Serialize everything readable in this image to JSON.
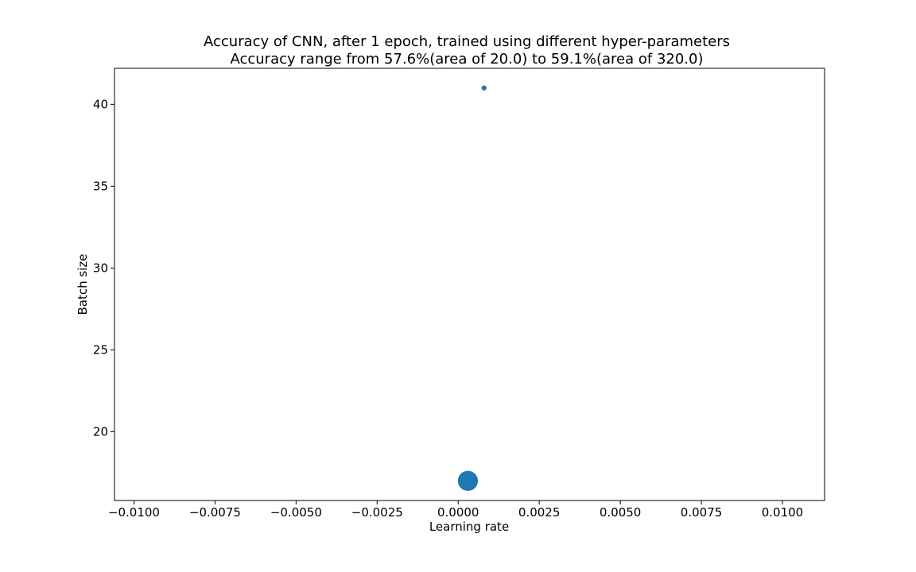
{
  "chart_data": {
    "type": "scatter",
    "title": "Accuracy of CNN, after 1 epoch, trained using different hyper-parameters",
    "subtitle": "Accuracy range from 57.6%(area of 20.0) to 59.1%(area of 320.0)",
    "xlabel": "Learning rate",
    "ylabel": "Batch size",
    "xlim": [
      -0.0106,
      0.0113
    ],
    "ylim": [
      15.8,
      42.2
    ],
    "xticks": [
      -0.01,
      -0.0075,
      -0.005,
      -0.0025,
      0.0,
      0.0025,
      0.005,
      0.0075,
      0.01
    ],
    "xtick_labels": [
      "−0.0100",
      "−0.0075",
      "−0.0050",
      "−0.0025",
      "0.0000",
      "0.0025",
      "0.0050",
      "0.0075",
      "0.0100"
    ],
    "yticks": [
      20,
      25,
      30,
      35,
      40
    ],
    "ytick_labels": [
      "20",
      "25",
      "30",
      "35",
      "40"
    ],
    "grid": false,
    "color": "#1f77b4",
    "points": [
      {
        "x": 0.0008,
        "y": 41,
        "area": 20.0
      },
      {
        "x": 0.0003,
        "y": 17,
        "area": 320.0
      }
    ]
  }
}
